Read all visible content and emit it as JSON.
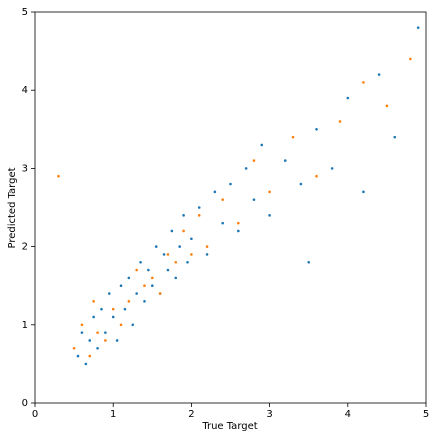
{
  "chart_data": {
    "type": "scatter",
    "xlabel": "True Target",
    "ylabel": "Predicted Target",
    "xlim": [
      0,
      5
    ],
    "ylim": [
      0,
      5
    ],
    "xticks": [
      0,
      1,
      2,
      3,
      4,
      5
    ],
    "yticks": [
      0,
      1,
      2,
      3,
      4,
      5
    ],
    "series": [
      {
        "color": "#1f77b4",
        "x": [
          0.55,
          0.6,
          0.65,
          0.7,
          0.75,
          0.8,
          0.85,
          0.9,
          0.95,
          1.0,
          1.05,
          1.1,
          1.15,
          1.2,
          1.25,
          1.3,
          1.35,
          1.4,
          1.45,
          1.5,
          1.55,
          1.6,
          1.65,
          1.7,
          1.75,
          1.8,
          1.85,
          1.9,
          1.95,
          2.0,
          2.1,
          2.2,
          2.3,
          2.4,
          2.5,
          2.6,
          2.7,
          2.8,
          2.9,
          3.0,
          3.2,
          3.4,
          3.5,
          3.6,
          3.8,
          4.0,
          4.2,
          4.4,
          4.6,
          4.9
        ],
        "values": [
          0.6,
          0.9,
          0.5,
          0.8,
          1.1,
          0.7,
          1.2,
          0.9,
          1.4,
          1.1,
          0.8,
          1.5,
          1.2,
          1.6,
          1.0,
          1.4,
          1.8,
          1.3,
          1.7,
          1.5,
          2.0,
          1.4,
          1.9,
          1.7,
          2.2,
          1.6,
          2.0,
          2.4,
          1.8,
          2.1,
          2.5,
          1.9,
          2.7,
          2.3,
          2.8,
          2.2,
          3.0,
          2.6,
          3.3,
          2.4,
          3.1,
          2.8,
          1.8,
          3.5,
          3.0,
          3.9,
          2.7,
          4.2,
          3.4,
          4.8
        ]
      },
      {
        "color": "#ff7f0e",
        "x": [
          0.5,
          0.6,
          0.7,
          0.75,
          0.8,
          0.9,
          1.0,
          1.1,
          1.2,
          1.3,
          1.4,
          1.5,
          1.6,
          1.7,
          1.8,
          1.9,
          2.0,
          2.1,
          2.2,
          2.4,
          2.6,
          2.8,
          3.0,
          3.3,
          3.6,
          3.9,
          4.2,
          4.5,
          4.8,
          0.3
        ],
        "values": [
          0.7,
          1.0,
          0.6,
          1.3,
          0.9,
          0.8,
          1.2,
          1.0,
          1.3,
          1.7,
          1.5,
          1.6,
          1.4,
          1.9,
          1.8,
          2.2,
          1.9,
          2.4,
          2.0,
          2.6,
          2.3,
          3.1,
          2.7,
          3.4,
          2.9,
          3.6,
          4.1,
          3.8,
          4.4,
          2.9
        ]
      }
    ]
  }
}
